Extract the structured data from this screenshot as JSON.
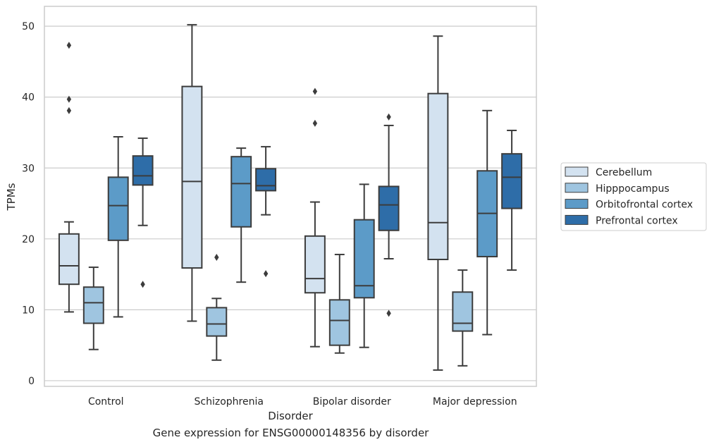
{
  "chart_data": {
    "type": "box",
    "caption": "Gene expression for ENSG00000148356 by disorder",
    "xlabel": "Disorder",
    "ylabel": "TPMs",
    "ylim": [
      -0.8,
      52.8
    ],
    "yticks": [
      0,
      10,
      20,
      30,
      40,
      50
    ],
    "grid": "horizontal",
    "legend_position": "right",
    "categories": [
      "Control",
      "Schizophrenia",
      "Bipolar disorder",
      "Major depression"
    ],
    "series": [
      {
        "name": "Cerebellum",
        "color": "#d3e2f0",
        "boxes": [
          {
            "whislo": 9.7,
            "q1": 13.6,
            "med": 16.2,
            "q3": 20.7,
            "whishi": 22.4,
            "fliers": [
              38.1,
              39.7,
              47.3
            ]
          },
          {
            "whislo": 8.4,
            "q1": 15.9,
            "med": 28.1,
            "q3": 41.5,
            "whishi": 50.2,
            "fliers": []
          },
          {
            "whislo": 4.8,
            "q1": 12.4,
            "med": 14.4,
            "q3": 20.4,
            "whishi": 25.2,
            "fliers": [
              36.3,
              40.8
            ]
          },
          {
            "whislo": 1.5,
            "q1": 17.1,
            "med": 22.3,
            "q3": 40.5,
            "whishi": 48.6,
            "fliers": []
          }
        ]
      },
      {
        "name": "Hipppocampus",
        "color": "#9fc5e0",
        "boxes": [
          {
            "whislo": 4.4,
            "q1": 8.1,
            "med": 11.0,
            "q3": 13.2,
            "whishi": 16.0,
            "fliers": []
          },
          {
            "whislo": 2.9,
            "q1": 6.3,
            "med": 8.0,
            "q3": 10.3,
            "whishi": 11.6,
            "fliers": [
              17.4
            ]
          },
          {
            "whislo": 3.9,
            "q1": 5.0,
            "med": 8.5,
            "q3": 11.4,
            "whishi": 17.8,
            "fliers": []
          },
          {
            "whislo": 2.1,
            "q1": 7.0,
            "med": 8.1,
            "q3": 12.5,
            "whishi": 15.6,
            "fliers": []
          }
        ]
      },
      {
        "name": "Orbitofrontal cortex",
        "color": "#5c9bc8",
        "boxes": [
          {
            "whislo": 9.0,
            "q1": 19.8,
            "med": 24.7,
            "q3": 28.7,
            "whishi": 34.4,
            "fliers": []
          },
          {
            "whislo": 13.9,
            "q1": 21.7,
            "med": 27.8,
            "q3": 31.6,
            "whishi": 32.8,
            "fliers": []
          },
          {
            "whislo": 4.7,
            "q1": 11.7,
            "med": 13.4,
            "q3": 22.7,
            "whishi": 27.7,
            "fliers": []
          },
          {
            "whislo": 6.5,
            "q1": 17.5,
            "med": 23.6,
            "q3": 29.6,
            "whishi": 38.1,
            "fliers": []
          }
        ]
      },
      {
        "name": "Prefrontal cortex",
        "color": "#2e6da8",
        "boxes": [
          {
            "whislo": 21.9,
            "q1": 27.6,
            "med": 28.9,
            "q3": 31.7,
            "whishi": 34.2,
            "fliers": [
              13.6
            ]
          },
          {
            "whislo": 23.4,
            "q1": 26.8,
            "med": 27.5,
            "q3": 29.9,
            "whishi": 33.0,
            "fliers": [
              15.1
            ]
          },
          {
            "whislo": 17.2,
            "q1": 21.2,
            "med": 24.8,
            "q3": 27.4,
            "whishi": 36.0,
            "fliers": [
              9.5,
              37.2
            ]
          },
          {
            "whislo": 15.6,
            "q1": 24.3,
            "med": 28.7,
            "q3": 32.0,
            "whishi": 35.3,
            "fliers": []
          }
        ]
      }
    ]
  }
}
